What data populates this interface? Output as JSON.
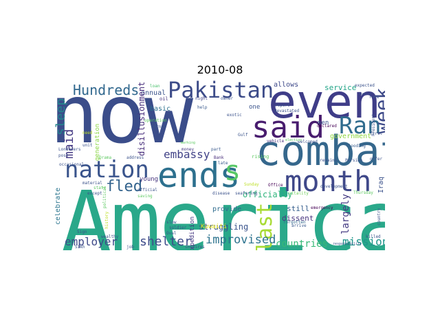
{
  "title": "2010-08",
  "colors": {
    "background": "#ffffff",
    "title": "#000000"
  },
  "words": [
    {
      "text": "now",
      "color": "#3b4d8a"
    },
    {
      "text": "American",
      "color": "#2aa88a"
    },
    {
      "text": "even",
      "color": "#3f3d88"
    },
    {
      "text": "combat",
      "color": "#35678c"
    },
    {
      "text": "said",
      "color": "#481c6e"
    },
    {
      "text": "ends",
      "color": "#2d708e"
    },
    {
      "text": "Pakistan",
      "color": "#3d4c89"
    },
    {
      "text": "month",
      "color": "#3f4889"
    },
    {
      "text": "nation",
      "color": "#3a548c"
    },
    {
      "text": "Ran",
      "color": "#306c8e"
    },
    {
      "text": "s",
      "color": "#57c766"
    },
    {
      "text": "week",
      "color": "#3e4a89"
    },
    {
      "text": "last",
      "color": "#a8db34"
    },
    {
      "text": "Hundreds",
      "color": "#31688e"
    },
    {
      "text": "fled",
      "color": "#33638d"
    },
    {
      "text": "embassy",
      "color": "#414287"
    },
    {
      "text": "sleep",
      "color": "#25868e"
    },
    {
      "text": "maid",
      "color": "#443983"
    },
    {
      "text": "shelter",
      "color": "#3e4c8a"
    },
    {
      "text": "improvised",
      "color": "#2c738e"
    },
    {
      "text": "employer",
      "color": "#3e4989"
    },
    {
      "text": "countries",
      "color": "#38b977"
    },
    {
      "text": "mission",
      "color": "#1f958b"
    },
    {
      "text": "officially",
      "color": "#2fb47c"
    },
    {
      "text": "struggling",
      "color": "#3a548c"
    },
    {
      "text": "dissent",
      "color": "#46337e"
    },
    {
      "text": "largely",
      "color": "#443a83"
    },
    {
      "text": "still",
      "color": "#355e8d"
    },
    {
      "text": "provide",
      "color": "#2f6c8e"
    },
    {
      "text": "expedition",
      "color": "#453882"
    },
    {
      "text": "Kuwaiti",
      "color": "#e5e419"
    },
    {
      "text": "celebrate",
      "color": "#2b758e"
    },
    {
      "text": "annual",
      "color": "#3a538b"
    },
    {
      "text": "basic",
      "color": "#2c718e"
    },
    {
      "text": "generation",
      "color": "#8bd646"
    },
    {
      "text": "disillusionment",
      "color": "#472d7b"
    },
    {
      "text": "young",
      "color": "#46337e"
    },
    {
      "text": "allows",
      "color": "#3e4989"
    },
    {
      "text": "service",
      "color": "#20a486"
    },
    {
      "text": "government",
      "color": "#90d743"
    },
    {
      "text": "Iraq",
      "color": "#3b528b"
    },
    {
      "text": "one",
      "color": "#3a538b"
    },
    {
      "text": "men",
      "color": "#3a538b"
    },
    {
      "text": "declared",
      "color": "#440154"
    },
    {
      "text": "Gulf",
      "color": "#3a538b"
    },
    {
      "text": "flooding",
      "color": "#365c8d"
    },
    {
      "text": "loan",
      "color": "#4ac16d"
    },
    {
      "text": "oil",
      "color": "#46337e"
    },
    {
      "text": "night",
      "color": "#414487"
    },
    {
      "text": "help",
      "color": "#38588c"
    },
    {
      "text": "money",
      "color": "#443983"
    },
    {
      "text": "part",
      "color": "#38588c"
    },
    {
      "text": "Bank",
      "color": "#472c7a"
    },
    {
      "text": "late",
      "color": "#38588c"
    },
    {
      "text": "rising",
      "color": "#5ec962"
    },
    {
      "text": "remains",
      "color": "#3b528b"
    },
    {
      "text": "Persian",
      "color": "#3b528b"
    },
    {
      "text": "Sunday",
      "color": "#bddf26"
    },
    {
      "text": "Office",
      "color": "#440154"
    },
    {
      "text": "development",
      "color": "#3b528b"
    },
    {
      "text": "vitality",
      "color": "#6ece58"
    },
    {
      "text": "emergency",
      "color": "#440154"
    },
    {
      "text": "forgotten",
      "color": "#31688e"
    },
    {
      "text": "arrive",
      "color": "#38588c"
    },
    {
      "text": "killed",
      "color": "#3b528b"
    },
    {
      "text": "disease",
      "color": "#3b528b"
    },
    {
      "text": "seafaring",
      "color": "#3b528b"
    },
    {
      "text": "soldier",
      "color": "#3b528b"
    },
    {
      "text": "vehicle",
      "color": "#46337e"
    },
    {
      "text": "welcomed",
      "color": "#3b528b"
    },
    {
      "text": "election",
      "color": "#5ec962"
    },
    {
      "text": "devastated",
      "color": "#3b528b"
    },
    {
      "text": "report",
      "color": "#3b528b"
    },
    {
      "text": "exotic",
      "color": "#3b528b"
    },
    {
      "text": "owner",
      "color": "#3b528b"
    },
    {
      "text": "operation",
      "color": "#5ec962"
    },
    {
      "text": "warned",
      "color": "#3b528b"
    },
    {
      "text": "marking",
      "color": "#5ec962"
    },
    {
      "text": "address",
      "color": "#3b528b"
    },
    {
      "text": "Drama",
      "color": "#5ec962"
    },
    {
      "text": "occasional",
      "color": "#3b528b"
    },
    {
      "text": "Londoners",
      "color": "#3b528b"
    },
    {
      "text": "unit",
      "color": "#3b528b"
    },
    {
      "text": "post",
      "color": "#3b528b"
    },
    {
      "text": "need",
      "color": "#bddf26"
    },
    {
      "text": "material",
      "color": "#3b528b"
    },
    {
      "text": "state",
      "color": "#5ec962"
    },
    {
      "text": "official",
      "color": "#3b528b"
    },
    {
      "text": "saving",
      "color": "#5ec962"
    },
    {
      "text": "Sign",
      "color": "#3b528b"
    },
    {
      "text": "slow",
      "color": "#3b528b"
    },
    {
      "text": "Oval",
      "color": "#3b528b"
    },
    {
      "text": "except",
      "color": "#3b528b"
    },
    {
      "text": "job",
      "color": "#3b528b"
    },
    {
      "text": "wealthy",
      "color": "#3b528b"
    },
    {
      "text": "inspires",
      "color": "#3b528b"
    },
    {
      "text": "Sikh",
      "color": "#3b528b"
    },
    {
      "text": "political",
      "color": "#5ec962"
    },
    {
      "text": "expected",
      "color": "#3b528b"
    },
    {
      "text": "race",
      "color": "#3b528b"
    },
    {
      "text": "President",
      "color": "#3b528b"
    },
    {
      "text": "first",
      "color": "#3b528b"
    },
    {
      "text": "offer",
      "color": "#3b528b"
    },
    {
      "text": "responsibility",
      "color": "#3b528b"
    },
    {
      "text": "country",
      "color": "#3b528b"
    },
    {
      "text": "Thursday",
      "color": "#5ec962"
    },
    {
      "text": "history",
      "color": "#bddf26"
    },
    {
      "text": "quarter",
      "color": "#3b528b"
    }
  ]
}
